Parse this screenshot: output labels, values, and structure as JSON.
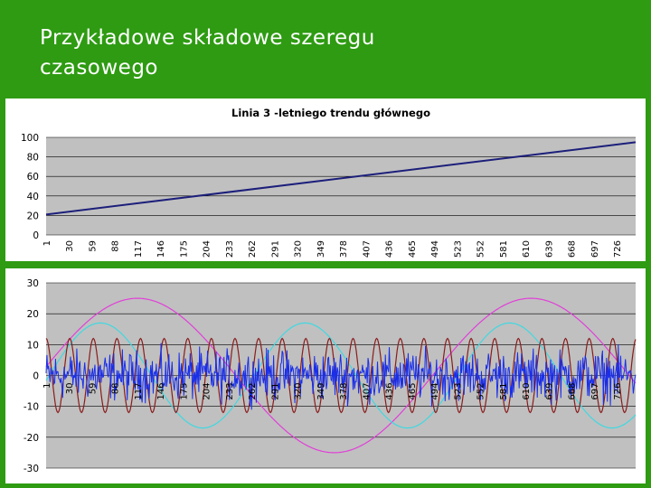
{
  "slide": {
    "title": "Przykładowe składowe szeregu\nczasowego"
  },
  "colors": {
    "background": "#2e9b12",
    "plot_area": "#c0c0c0",
    "trend_line": "#1c1f7a",
    "series_magenta": "#e040d8",
    "series_cyan": "#40d8e0",
    "series_brown": "#8a1c1c",
    "series_noise": "#1a2ee8"
  },
  "chart_data": [
    {
      "type": "line",
      "title": "Linia 3 -letniego trendu głównego",
      "xlabel": "",
      "ylabel": "",
      "x_range": [
        1,
        750
      ],
      "ylim": [
        0,
        100
      ],
      "yticks": [
        0,
        20,
        40,
        60,
        80,
        100
      ],
      "xticks": [
        1,
        30,
        59,
        88,
        117,
        146,
        175,
        204,
        233,
        262,
        291,
        320,
        349,
        378,
        407,
        436,
        465,
        494,
        523,
        552,
        581,
        610,
        639,
        668,
        697,
        726
      ],
      "grid": "horizontal",
      "series": [
        {
          "x": [
            1,
            750
          ],
          "y": [
            21,
            95
          ]
        }
      ]
    },
    {
      "type": "line",
      "title": "",
      "xlabel": "",
      "ylabel": "",
      "x_range": [
        1,
        750
      ],
      "ylim": [
        -30,
        30
      ],
      "yticks": [
        -30,
        -20,
        -10,
        0,
        10,
        20,
        30
      ],
      "xticks": [
        1,
        30,
        59,
        88,
        117,
        146,
        175,
        204,
        233,
        262,
        291,
        320,
        349,
        378,
        407,
        436,
        465,
        494,
        523,
        552,
        581,
        610,
        639,
        668,
        697,
        726
      ],
      "grid": "horizontal",
      "series": [
        {
          "kind": "sine",
          "amplitude": 25,
          "period": 500,
          "peak_at": 117
        },
        {
          "kind": "sine",
          "amplitude": 17,
          "period": 260,
          "peak_at": 70
        },
        {
          "kind": "sine",
          "amplitude": 12,
          "period": 30,
          "peak_at": 1
        },
        {
          "kind": "noise",
          "amplitude": 6
        }
      ]
    }
  ]
}
